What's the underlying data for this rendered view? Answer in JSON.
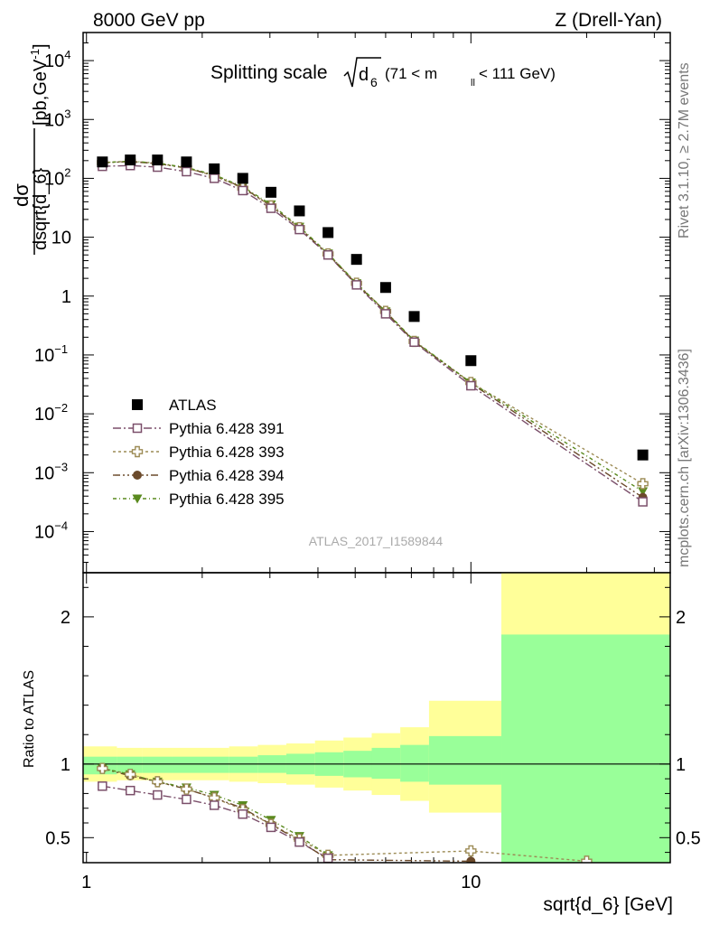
{
  "header": {
    "left": "8000 GeV pp",
    "right": "Z (Drell-Yan)"
  },
  "side_text": {
    "rivet": "Rivet 3.1.10, ≥ 2.7M events",
    "mcplots": "mcplots.cern.ch [arXiv:1306.3436]"
  },
  "analysis_id": "ATLAS_2017_I1589844",
  "colors": {
    "atlas": "#000000",
    "p391": "#7b4f6a",
    "p393": "#9c8b55",
    "p394": "#6b4a2b",
    "p395": "#5a8a1e",
    "band_yellow": "#ffff99",
    "band_green": "#99ff99"
  },
  "chart_data": [
    {
      "type": "scatter",
      "title": "Splitting scale √d6 (71 < mll < 111 GeV)",
      "title_parts": {
        "main": "Splitting scale",
        "sqrt_arg": "d",
        "sqrt_sub": "6",
        "range": "(71 < m",
        "range_sub": "ll",
        "range_end": " < 111 GeV)"
      },
      "xlabel": "sqrt{d_6} [GeV]",
      "ylabel": "dσ/dsqrt{d_6} [pb,GeV⁻¹]",
      "ylabel_parts": {
        "num": "dσ",
        "den": "dsqrt{d_6}",
        "unit_pre": "[pb,GeV",
        "unit_sup": "-1",
        "unit_post": "]"
      },
      "xscale": "log",
      "yscale": "log",
      "xlim": [
        0.98,
        33
      ],
      "ylim": [
        2e-05,
        30000
      ],
      "x_ticks": [
        1,
        10
      ],
      "y_ticks": [
        {
          "v": 0.0001,
          "m": "10",
          "e": "−4"
        },
        {
          "v": 0.001,
          "m": "10",
          "e": "−3"
        },
        {
          "v": 0.01,
          "m": "10",
          "e": "−2"
        },
        {
          "v": 0.1,
          "m": "10",
          "e": "−1"
        },
        {
          "v": 1,
          "m": "1",
          "e": ""
        },
        {
          "v": 10,
          "m": "10",
          "e": ""
        },
        {
          "v": 100,
          "m": "10",
          "e": "2"
        },
        {
          "v": 1000,
          "m": "10",
          "e": "3"
        },
        {
          "v": 10000,
          "m": "10",
          "e": "4"
        }
      ],
      "legend_position": "center-left",
      "x": [
        1.1,
        1.3,
        1.53,
        1.82,
        2.15,
        2.55,
        3.02,
        3.58,
        4.25,
        5.04,
        6.0,
        7.12,
        10.0,
        28.0
      ],
      "series": [
        {
          "name": "ATLAS",
          "marker": "square-filled",
          "color": "#000000",
          "values": [
            190,
            205,
            205,
            190,
            145,
            100,
            58,
            28,
            12,
            4.2,
            1.4,
            0.45,
            0.08,
            0.002
          ]
        },
        {
          "name": "Pythia 6.428 391",
          "marker": "square-open",
          "color": "#7b4f6a",
          "values": [
            160,
            165,
            155,
            130,
            100,
            62,
            31,
            13.5,
            5.0,
            1.55,
            0.5,
            0.165,
            0.03,
            0.00032
          ]
        },
        {
          "name": "Pythia 6.428 393",
          "marker": "cross-open",
          "color": "#9c8b55",
          "values": [
            185,
            195,
            180,
            150,
            110,
            68,
            34,
            14.5,
            5.2,
            1.65,
            0.55,
            0.17,
            0.034,
            0.00065
          ]
        },
        {
          "name": "Pythia 6.428 394",
          "marker": "circle-filled",
          "color": "#6b4a2b",
          "values": [
            185,
            192,
            178,
            150,
            112,
            70,
            34,
            14.5,
            5.1,
            1.6,
            0.54,
            0.17,
            0.033,
            0.00038
          ]
        },
        {
          "name": "Pythia 6.428 395",
          "marker": "triangle-down-filled",
          "color": "#5a8a1e",
          "values": [
            185,
            195,
            182,
            153,
            115,
            72,
            36,
            15,
            5.3,
            1.65,
            0.55,
            0.175,
            0.034,
            0.00048
          ]
        }
      ]
    },
    {
      "type": "scatter",
      "title": "",
      "xlabel": "sqrt{d_6} [GeV]",
      "ylabel": "Ratio to ATLAS",
      "xscale": "log",
      "xlim": [
        0.98,
        33
      ],
      "ylim": [
        0.33,
        2.3
      ],
      "y_ticks": [
        {
          "v": 0.5,
          "label": "0.5"
        },
        {
          "v": 1,
          "label": "1"
        },
        {
          "v": 2,
          "label": "2"
        }
      ],
      "bands": [
        {
          "x0": 0.98,
          "x1": 1.2,
          "y_lo": 0.88,
          "y_hi": 1.12,
          "g_lo": 0.93,
          "g_hi": 1.05
        },
        {
          "x0": 1.2,
          "x1": 1.4,
          "y_lo": 0.89,
          "y_hi": 1.11,
          "g_lo": 0.94,
          "g_hi": 1.05
        },
        {
          "x0": 1.4,
          "x1": 1.67,
          "y_lo": 0.89,
          "y_hi": 1.11,
          "g_lo": 0.94,
          "g_hi": 1.05
        },
        {
          "x0": 1.67,
          "x1": 1.98,
          "y_lo": 0.89,
          "y_hi": 1.11,
          "g_lo": 0.94,
          "g_hi": 1.05
        },
        {
          "x0": 1.98,
          "x1": 2.35,
          "y_lo": 0.89,
          "y_hi": 1.11,
          "g_lo": 0.94,
          "g_hi": 1.05
        },
        {
          "x0": 2.35,
          "x1": 2.79,
          "y_lo": 0.88,
          "y_hi": 1.12,
          "g_lo": 0.94,
          "g_hi": 1.05
        },
        {
          "x0": 2.79,
          "x1": 3.31,
          "y_lo": 0.87,
          "y_hi": 1.13,
          "g_lo": 0.94,
          "g_hi": 1.06
        },
        {
          "x0": 3.31,
          "x1": 3.93,
          "y_lo": 0.86,
          "y_hi": 1.14,
          "g_lo": 0.93,
          "g_hi": 1.07
        },
        {
          "x0": 3.93,
          "x1": 4.66,
          "y_lo": 0.84,
          "y_hi": 1.16,
          "g_lo": 0.92,
          "g_hi": 1.08
        },
        {
          "x0": 4.66,
          "x1": 5.52,
          "y_lo": 0.82,
          "y_hi": 1.18,
          "g_lo": 0.91,
          "g_hi": 1.09
        },
        {
          "x0": 5.52,
          "x1": 6.55,
          "y_lo": 0.79,
          "y_hi": 1.21,
          "g_lo": 0.9,
          "g_hi": 1.11
        },
        {
          "x0": 6.55,
          "x1": 7.78,
          "y_lo": 0.75,
          "y_hi": 1.25,
          "g_lo": 0.88,
          "g_hi": 1.13
        },
        {
          "x0": 7.78,
          "x1": 12.0,
          "y_lo": 0.67,
          "y_hi": 1.43,
          "g_lo": 0.86,
          "g_hi": 1.19
        },
        {
          "x0": 12.0,
          "x1": 33.0,
          "y_lo": 0.33,
          "y_hi": 2.3,
          "g_lo": 0.33,
          "g_hi": 1.88
        }
      ],
      "series": [
        {
          "name": "Pythia 6.428 391",
          "x": [
            1.1,
            1.3,
            1.53,
            1.82,
            2.15,
            2.55,
            3.02,
            3.58,
            4.25
          ],
          "values": [
            0.85,
            0.82,
            0.79,
            0.76,
            0.72,
            0.66,
            0.57,
            0.47,
            0.36
          ]
        },
        {
          "name": "Pythia 6.428 393",
          "x": [
            1.1,
            1.3,
            1.53,
            1.82,
            2.15,
            2.55,
            3.02,
            3.58,
            4.25,
            10.0,
            20.0
          ],
          "values": [
            0.97,
            0.93,
            0.88,
            0.83,
            0.77,
            0.69,
            0.59,
            0.49,
            0.38,
            0.41,
            0.34
          ]
        },
        {
          "name": "Pythia 6.428 394",
          "x": [
            1.1,
            1.3,
            1.53,
            1.82,
            2.15,
            2.55,
            3.02,
            3.58,
            4.25,
            10.0
          ],
          "values": [
            0.97,
            0.92,
            0.88,
            0.83,
            0.77,
            0.7,
            0.59,
            0.48,
            0.35,
            0.34
          ]
        },
        {
          "name": "Pythia 6.428 395",
          "x": [
            1.1,
            1.3,
            1.53,
            1.82,
            2.15,
            2.55,
            3.02,
            3.58,
            4.25
          ],
          "values": [
            0.97,
            0.93,
            0.88,
            0.84,
            0.79,
            0.72,
            0.62,
            0.51,
            0.38
          ]
        }
      ]
    }
  ]
}
